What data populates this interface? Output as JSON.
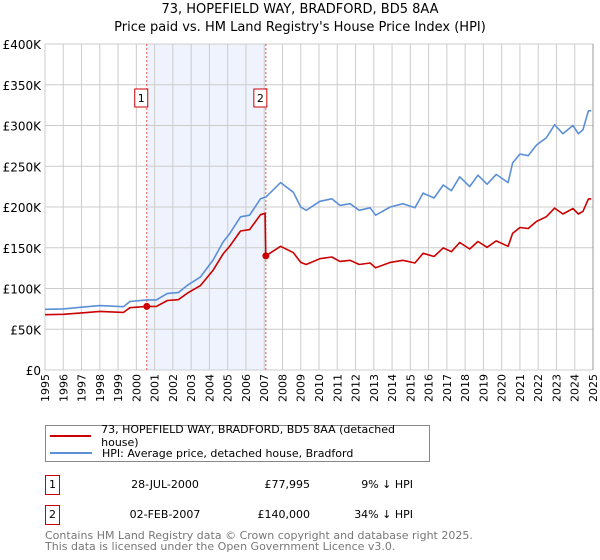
{
  "chart_data": {
    "type": "line",
    "title": "73, HOPEFIELD WAY, BRADFORD, BD5 8AA",
    "subtitle": "Price paid vs. HM Land Registry's House Price Index (HPI)",
    "xlim": [
      1995,
      2025.1
    ],
    "ylim": [
      0,
      400000
    ],
    "y_ticks": [
      {
        "v": 0,
        "label": "£0"
      },
      {
        "v": 50000,
        "label": "£50K"
      },
      {
        "v": 100000,
        "label": "£100K"
      },
      {
        "v": 150000,
        "label": "£150K"
      },
      {
        "v": 200000,
        "label": "£200K"
      },
      {
        "v": 250000,
        "label": "£250K"
      },
      {
        "v": 300000,
        "label": "£300K"
      },
      {
        "v": 350000,
        "label": "£350K"
      },
      {
        "v": 400000,
        "label": "£400K"
      }
    ],
    "x_ticks": [
      "1995",
      "1996",
      "1997",
      "1998",
      "1999",
      "2000",
      "2001",
      "2002",
      "2003",
      "2004",
      "2005",
      "2006",
      "2007",
      "2008",
      "2009",
      "2010",
      "2011",
      "2012",
      "2013",
      "2014",
      "2015",
      "2016",
      "2017",
      "2018",
      "2019",
      "2020",
      "2021",
      "2022",
      "2023",
      "2024",
      "2025"
    ],
    "grid": true,
    "x": [
      1995.0,
      1996.0,
      1997.0,
      1998.0,
      1999.3,
      1999.65,
      2000.57,
      2001.1,
      2001.7,
      2002.3,
      2002.8,
      2003.5,
      2004.2,
      2004.75,
      2005.1,
      2005.7,
      2006.2,
      2006.8,
      2007.05,
      2007.09,
      2007.9,
      2008.6,
      2009.0,
      2009.3,
      2010.05,
      2010.7,
      2011.15,
      2011.7,
      2012.2,
      2012.8,
      2013.1,
      2013.9,
      2014.6,
      2015.25,
      2015.7,
      2016.3,
      2016.8,
      2017.25,
      2017.7,
      2018.25,
      2018.7,
      2019.2,
      2019.7,
      2020.35,
      2020.6,
      2021.0,
      2021.45,
      2021.9,
      2022.45,
      2022.9,
      2023.35,
      2023.9,
      2024.2,
      2024.45,
      2024.75,
      2024.9
    ],
    "series": [
      {
        "name": "73, HOPEFIELD WAY, BRADFORD, BD5 8AA (detached house)",
        "color": "#cc0000",
        "values": [
          67800,
          68300,
          70000,
          71900,
          70700,
          76400,
          78000,
          78000,
          85300,
          86200,
          94300,
          103400,
          122400,
          142400,
          151500,
          170500,
          172300,
          190500,
          192300,
          140000,
          151800,
          143900,
          132000,
          129400,
          136600,
          138600,
          133300,
          134600,
          129400,
          131300,
          125400,
          132000,
          134600,
          131300,
          143200,
          139300,
          149800,
          145200,
          156400,
          148500,
          157700,
          150500,
          158400,
          151800,
          167600,
          174900,
          173600,
          182200,
          188100,
          198700,
          191400,
          198000,
          191400,
          194700,
          209900,
          209900
        ]
      },
      {
        "name": "HPI: Average price, detached house, Bradford",
        "color": "#5b8fd6",
        "values": [
          74500,
          75000,
          77000,
          79000,
          77700,
          84000,
          86000,
          86000,
          94000,
          95000,
          104000,
          114000,
          135000,
          157000,
          167000,
          188000,
          190000,
          210000,
          212000,
          212000,
          230000,
          218000,
          200000,
          196000,
          207000,
          210000,
          202000,
          204000,
          196000,
          199000,
          190000,
          200000,
          204000,
          199000,
          217000,
          211000,
          227000,
          220000,
          237000,
          225000,
          239000,
          228000,
          240000,
          230000,
          254000,
          265000,
          263000,
          276000,
          285000,
          301000,
          290000,
          300000,
          290000,
          295000,
          318000,
          318000
        ]
      }
    ],
    "sales": [
      {
        "num": "1",
        "x": 2000.57,
        "price": 77995,
        "date": "28-JUL-2000",
        "price_label": "£77,995",
        "diff": "9% ↓ HPI"
      },
      {
        "num": "2",
        "x": 2007.09,
        "price": 140000,
        "date": "02-FEB-2007",
        "price_label": "£140,000",
        "diff": "34% ↓ HPI"
      }
    ],
    "legend_position": "bottom"
  },
  "footer": {
    "line1": "Contains HM Land Registry data © Crown copyright and database right 2025.",
    "line2": "This data is licensed under the Open Government Licence v3.0."
  }
}
